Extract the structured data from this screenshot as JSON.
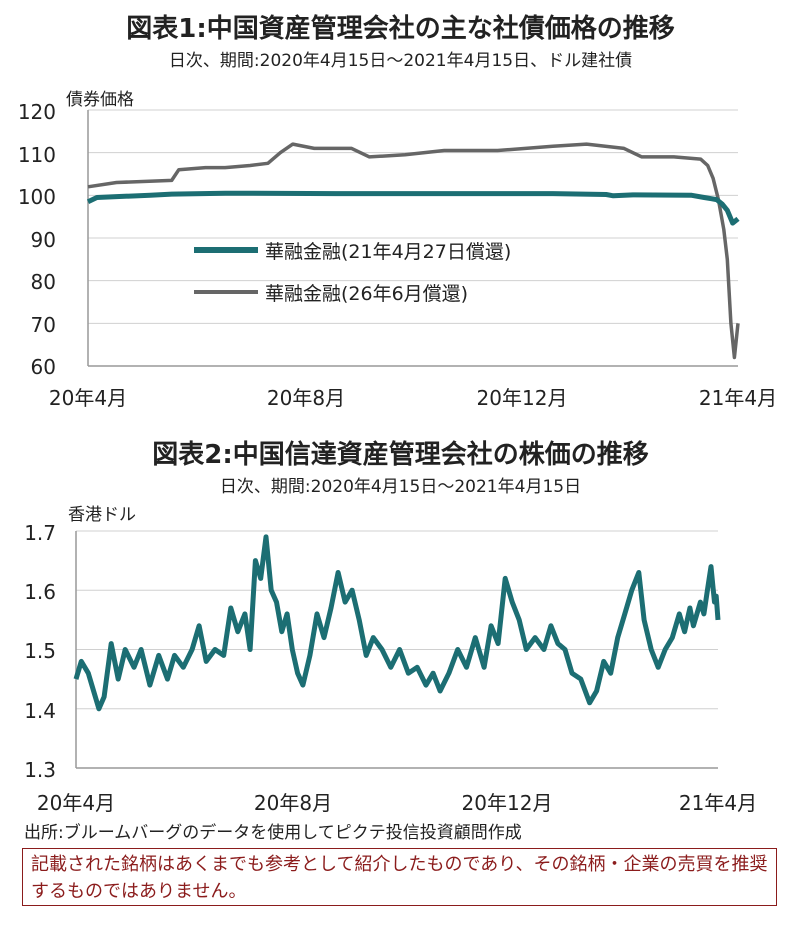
{
  "chart1": {
    "title": "図表1:中国資産管理会社の主な社債価格の推移",
    "subtitle": "日次、期間:2020年4月15日～2021年4月15日、ドル建社債",
    "ylabel": "債券価格",
    "yticks": [
      "120",
      "110",
      "100",
      "90",
      "80",
      "70",
      "60"
    ],
    "xticks": [
      "20年4月",
      "20年8月",
      "20年12月",
      "21年4月"
    ],
    "legend": [
      "華融金融(21年4月27日償還)",
      "華融金融(26年6月償還)"
    ],
    "colors": {
      "teal": "#1c6e73",
      "gray": "#666666"
    }
  },
  "chart2": {
    "title": "図表2:中国信達資産管理会社の株価の推移",
    "subtitle": "日次、期間:2020年4月15日～2021年4月15日",
    "ylabel": "香港ドル",
    "yticks": [
      "1.7",
      "1.6",
      "1.5",
      "1.4",
      "1.3"
    ],
    "xticks": [
      "20年4月",
      "20年8月",
      "20年12月",
      "21年4月"
    ]
  },
  "source": "出所:ブルームバーグのデータを使用してピクテ投信投資顧問作成",
  "notice": "記載された銘柄はあくまでも参考として紹介したものであり、その銘柄・企業の売買を推奨するものではありません。",
  "chart_data": [
    {
      "type": "line",
      "title": "図表1:中国資産管理会社の主な社債価格の推移",
      "ylabel": "債券価格",
      "ylim": [
        60,
        120
      ],
      "xlim": [
        "2020-04-15",
        "2021-04-15"
      ],
      "grid": true,
      "legend": "center",
      "series": [
        {
          "name": "華融金融(21年4月27日償還)",
          "color": "#1c6e73",
          "points": [
            [
              "2020-04-15",
              98.5
            ],
            [
              "2020-04-20",
              99.5
            ],
            [
              "2020-05-01",
              99.7
            ],
            [
              "2020-05-20",
              100
            ],
            [
              "2020-06-01",
              100.3
            ],
            [
              "2020-07-01",
              100.5
            ],
            [
              "2020-09-01",
              100.4
            ],
            [
              "2020-11-01",
              100.4
            ],
            [
              "2021-01-01",
              100.4
            ],
            [
              "2021-01-31",
              100.2
            ],
            [
              "2021-02-04",
              99.9
            ],
            [
              "2021-02-15",
              100.1
            ],
            [
              "2021-03-20",
              100.0
            ],
            [
              "2021-03-27",
              99.5
            ],
            [
              "2021-03-31",
              99.2
            ],
            [
              "2021-04-03",
              99.0
            ],
            [
              "2021-04-06",
              98.0
            ],
            [
              "2021-04-09",
              96.5
            ],
            [
              "2021-04-12",
              93.5
            ],
            [
              "2021-04-15",
              94.5
            ]
          ]
        },
        {
          "name": "華融金融(26年6月償還)",
          "color": "#666666",
          "points": [
            [
              "2020-04-15",
              102
            ],
            [
              "2020-05-01",
              103
            ],
            [
              "2020-06-01",
              103.5
            ],
            [
              "2020-06-05",
              106
            ],
            [
              "2020-06-20",
              106.5
            ],
            [
              "2020-07-01",
              106.5
            ],
            [
              "2020-07-15",
              107
            ],
            [
              "2020-07-25",
              107.5
            ],
            [
              "2020-08-01",
              110
            ],
            [
              "2020-08-08",
              112
            ],
            [
              "2020-08-20",
              111
            ],
            [
              "2020-09-10",
              111
            ],
            [
              "2020-09-20",
              109
            ],
            [
              "2020-10-10",
              109.5
            ],
            [
              "2020-11-01",
              110.5
            ],
            [
              "2020-12-01",
              110.5
            ],
            [
              "2021-01-01",
              111.5
            ],
            [
              "2021-01-20",
              112
            ],
            [
              "2021-02-10",
              111
            ],
            [
              "2021-02-20",
              109
            ],
            [
              "2021-03-10",
              109
            ],
            [
              "2021-03-25",
              108.5
            ],
            [
              "2021-03-29",
              107
            ],
            [
              "2021-04-01",
              104
            ],
            [
              "2021-04-04",
              99
            ],
            [
              "2021-04-07",
              92
            ],
            [
              "2021-04-09",
              85
            ],
            [
              "2021-04-11",
              70
            ],
            [
              "2021-04-13",
              62
            ],
            [
              "2021-04-15",
              70
            ]
          ]
        }
      ]
    },
    {
      "type": "line",
      "title": "図表2:中国信達資産管理会社の株価の推移",
      "ylabel": "香港ドル",
      "ylim": [
        1.3,
        1.7
      ],
      "xlim": [
        "2020-04-15",
        "2021-04-15"
      ],
      "grid": true,
      "series": [
        {
          "name": "",
          "color": "#1c6e73",
          "points": [
            [
              "2020-04-15",
              1.45
            ],
            [
              "2020-04-18",
              1.48
            ],
            [
              "2020-04-22",
              1.46
            ],
            [
              "2020-04-25",
              1.43
            ],
            [
              "2020-04-28",
              1.4
            ],
            [
              "2020-05-01",
              1.42
            ],
            [
              "2020-05-05",
              1.51
            ],
            [
              "2020-05-09",
              1.45
            ],
            [
              "2020-05-13",
              1.5
            ],
            [
              "2020-05-18",
              1.47
            ],
            [
              "2020-05-22",
              1.5
            ],
            [
              "2020-05-27",
              1.44
            ],
            [
              "2020-06-01",
              1.49
            ],
            [
              "2020-06-06",
              1.45
            ],
            [
              "2020-06-10",
              1.49
            ],
            [
              "2020-06-15",
              1.47
            ],
            [
              "2020-06-20",
              1.5
            ],
            [
              "2020-06-24",
              1.54
            ],
            [
              "2020-06-28",
              1.48
            ],
            [
              "2020-07-03",
              1.5
            ],
            [
              "2020-07-08",
              1.49
            ],
            [
              "2020-07-12",
              1.57
            ],
            [
              "2020-07-16",
              1.53
            ],
            [
              "2020-07-20",
              1.56
            ],
            [
              "2020-07-23",
              1.5
            ],
            [
              "2020-07-26",
              1.65
            ],
            [
              "2020-07-29",
              1.62
            ],
            [
              "2020-08-01",
              1.69
            ],
            [
              "2020-08-04",
              1.6
            ],
            [
              "2020-08-07",
              1.58
            ],
            [
              "2020-08-10",
              1.53
            ],
            [
              "2020-08-13",
              1.56
            ],
            [
              "2020-08-16",
              1.5
            ],
            [
              "2020-08-19",
              1.46
            ],
            [
              "2020-08-22",
              1.44
            ],
            [
              "2020-08-26",
              1.49
            ],
            [
              "2020-08-30",
              1.56
            ],
            [
              "2020-09-03",
              1.52
            ],
            [
              "2020-09-07",
              1.57
            ],
            [
              "2020-09-11",
              1.63
            ],
            [
              "2020-09-15",
              1.58
            ],
            [
              "2020-09-19",
              1.6
            ],
            [
              "2020-09-23",
              1.55
            ],
            [
              "2020-09-27",
              1.49
            ],
            [
              "2020-10-01",
              1.52
            ],
            [
              "2020-10-06",
              1.5
            ],
            [
              "2020-10-11",
              1.47
            ],
            [
              "2020-10-16",
              1.5
            ],
            [
              "2020-10-21",
              1.46
            ],
            [
              "2020-10-26",
              1.47
            ],
            [
              "2020-10-31",
              1.44
            ],
            [
              "2020-11-04",
              1.46
            ],
            [
              "2020-11-08",
              1.43
            ],
            [
              "2020-11-13",
              1.46
            ],
            [
              "2020-11-18",
              1.5
            ],
            [
              "2020-11-23",
              1.47
            ],
            [
              "2020-11-28",
              1.52
            ],
            [
              "2020-12-03",
              1.47
            ],
            [
              "2020-12-07",
              1.54
            ],
            [
              "2020-12-11",
              1.51
            ],
            [
              "2020-12-15",
              1.62
            ],
            [
              "2020-12-19",
              1.58
            ],
            [
              "2020-12-23",
              1.55
            ],
            [
              "2020-12-27",
              1.5
            ],
            [
              "2021-01-01",
              1.52
            ],
            [
              "2021-01-06",
              1.5
            ],
            [
              "2021-01-10",
              1.54
            ],
            [
              "2021-01-14",
              1.51
            ],
            [
              "2021-01-18",
              1.5
            ],
            [
              "2021-01-22",
              1.46
            ],
            [
              "2021-01-27",
              1.45
            ],
            [
              "2021-02-01",
              1.41
            ],
            [
              "2021-02-05",
              1.43
            ],
            [
              "2021-02-09",
              1.48
            ],
            [
              "2021-02-13",
              1.46
            ],
            [
              "2021-02-17",
              1.52
            ],
            [
              "2021-02-21",
              1.56
            ],
            [
              "2021-02-25",
              1.6
            ],
            [
              "2021-03-01",
              1.63
            ],
            [
              "2021-03-04",
              1.55
            ],
            [
              "2021-03-08",
              1.5
            ],
            [
              "2021-03-12",
              1.47
            ],
            [
              "2021-03-16",
              1.5
            ],
            [
              "2021-03-20",
              1.52
            ],
            [
              "2021-03-24",
              1.56
            ],
            [
              "2021-03-27",
              1.53
            ],
            [
              "2021-03-30",
              1.57
            ],
            [
              "2021-04-01",
              1.54
            ],
            [
              "2021-04-03",
              1.56
            ],
            [
              "2021-04-05",
              1.58
            ],
            [
              "2021-04-07",
              1.56
            ],
            [
              "2021-04-09",
              1.6
            ],
            [
              "2021-04-10",
              1.62
            ],
            [
              "2021-04-11",
              1.64
            ],
            [
              "2021-04-12",
              1.61
            ],
            [
              "2021-04-13",
              1.58
            ],
            [
              "2021-04-14",
              1.59
            ],
            [
              "2021-04-15",
              1.55
            ]
          ]
        }
      ]
    }
  ]
}
